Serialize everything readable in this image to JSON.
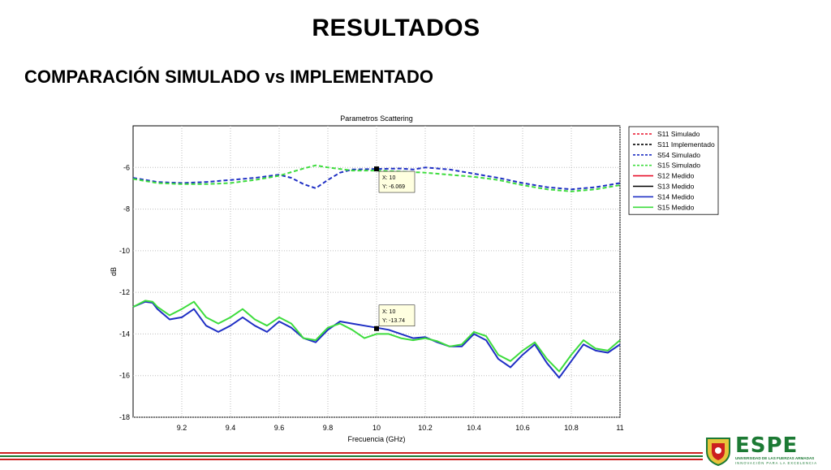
{
  "slide": {
    "title": "RESULTADOS",
    "subtitle": "COMPARACIÓN SIMULADO vs IMPLEMENTADO"
  },
  "logo": {
    "name": "ESPE",
    "line1": "UNIVERSIDAD DE LAS FUERZAS ARMADAS",
    "line2": "INNOVACIÓN PARA LA EXCELENCIA",
    "color": "#1c7a34",
    "accent": "#cc1f1f"
  },
  "chart_data": {
    "type": "line",
    "title": "Parametros Scattering",
    "xlabel": "Frecuencia (GHz)",
    "ylabel": "dB",
    "xlim": [
      9.0,
      11.0
    ],
    "ylim": [
      -18,
      -4
    ],
    "xticks": [
      9.2,
      9.4,
      9.6,
      9.8,
      10,
      10.2,
      10.4,
      10.6,
      10.8,
      11
    ],
    "yticks": [
      -6,
      -8,
      -10,
      -12,
      -14,
      -16,
      -18
    ],
    "grid": true,
    "legend": "top-right",
    "series": [
      {
        "name": "S11 Simulado",
        "color": "#e8102a",
        "dash": true,
        "x": [],
        "y": []
      },
      {
        "name": "S11 Implementado",
        "color": "#000000",
        "dash": true,
        "x": [],
        "y": []
      },
      {
        "name": "S54 Simulado",
        "color": "#1f2fc4",
        "dash": true,
        "x": [
          9.0,
          9.1,
          9.2,
          9.3,
          9.4,
          9.5,
          9.6,
          9.65,
          9.7,
          9.75,
          9.8,
          9.85,
          9.9,
          10.0,
          10.1,
          10.15,
          10.2,
          10.3,
          10.4,
          10.5,
          10.6,
          10.7,
          10.8,
          10.9,
          11.0
        ],
        "y": [
          -6.5,
          -6.7,
          -6.75,
          -6.7,
          -6.6,
          -6.5,
          -6.35,
          -6.5,
          -6.8,
          -7.0,
          -6.6,
          -6.25,
          -6.1,
          -6.069,
          -6.05,
          -6.1,
          -6.0,
          -6.1,
          -6.3,
          -6.5,
          -6.75,
          -6.95,
          -7.05,
          -6.95,
          -6.75
        ]
      },
      {
        "name": "S15 Simulado",
        "color": "#3ddc3d",
        "dash": true,
        "x": [
          9.0,
          9.1,
          9.2,
          9.3,
          9.4,
          9.5,
          9.6,
          9.7,
          9.75,
          9.8,
          9.9,
          10.0,
          10.1,
          10.2,
          10.3,
          10.4,
          10.5,
          10.6,
          10.7,
          10.8,
          10.9,
          11.0
        ],
        "y": [
          -6.55,
          -6.75,
          -6.8,
          -6.8,
          -6.75,
          -6.6,
          -6.4,
          -6.05,
          -5.9,
          -6.0,
          -6.15,
          -6.15,
          -6.2,
          -6.25,
          -6.35,
          -6.45,
          -6.6,
          -6.85,
          -7.05,
          -7.15,
          -7.05,
          -6.85
        ]
      },
      {
        "name": "S12 Medido",
        "color": "#e8102a",
        "dash": false,
        "x": [],
        "y": []
      },
      {
        "name": "S13 Medido",
        "color": "#000000",
        "dash": false,
        "x": [],
        "y": []
      },
      {
        "name": "S14 Medido",
        "color": "#1f2fc4",
        "dash": false,
        "x": [
          9.0,
          9.05,
          9.08,
          9.1,
          9.15,
          9.2,
          9.25,
          9.3,
          9.35,
          9.4,
          9.45,
          9.5,
          9.55,
          9.6,
          9.65,
          9.7,
          9.75,
          9.8,
          9.85,
          9.9,
          9.95,
          10.0,
          10.05,
          10.1,
          10.15,
          10.2,
          10.25,
          10.3,
          10.35,
          10.4,
          10.45,
          10.5,
          10.55,
          10.6,
          10.65,
          10.7,
          10.75,
          10.8,
          10.85,
          10.9,
          10.95,
          11.0
        ],
        "y": [
          -12.7,
          -12.45,
          -12.5,
          -12.8,
          -13.3,
          -13.2,
          -12.8,
          -13.6,
          -13.9,
          -13.6,
          -13.2,
          -13.6,
          -13.9,
          -13.4,
          -13.7,
          -14.2,
          -14.4,
          -13.8,
          -13.4,
          -13.5,
          -13.6,
          -13.7,
          -13.8,
          -14.0,
          -14.2,
          -14.15,
          -14.4,
          -14.6,
          -14.6,
          -14.0,
          -14.3,
          -15.2,
          -15.6,
          -15.0,
          -14.5,
          -15.4,
          -16.1,
          -15.3,
          -14.5,
          -14.8,
          -14.9,
          -14.5
        ]
      },
      {
        "name": "S15 Medido",
        "color": "#3ddc3d",
        "dash": false,
        "x": [
          9.0,
          9.05,
          9.08,
          9.1,
          9.15,
          9.2,
          9.25,
          9.3,
          9.35,
          9.4,
          9.45,
          9.5,
          9.55,
          9.6,
          9.65,
          9.7,
          9.75,
          9.8,
          9.85,
          9.9,
          9.95,
          10.0,
          10.05,
          10.1,
          10.15,
          10.2,
          10.25,
          10.3,
          10.35,
          10.4,
          10.45,
          10.5,
          10.55,
          10.6,
          10.65,
          10.7,
          10.75,
          10.8,
          10.85,
          10.9,
          10.95,
          11.0
        ],
        "y": [
          -12.7,
          -12.4,
          -12.45,
          -12.7,
          -13.1,
          -12.8,
          -12.45,
          -13.2,
          -13.5,
          -13.2,
          -12.8,
          -13.3,
          -13.6,
          -13.2,
          -13.5,
          -14.2,
          -14.3,
          -13.7,
          -13.5,
          -13.8,
          -14.2,
          -14.0,
          -14.0,
          -14.2,
          -14.3,
          -14.2,
          -14.35,
          -14.6,
          -14.5,
          -13.9,
          -14.1,
          -15.0,
          -15.3,
          -14.8,
          -14.4,
          -15.2,
          -15.8,
          -15.0,
          -14.3,
          -14.7,
          -14.8,
          -14.3
        ]
      }
    ],
    "annotations": [
      {
        "x": 10,
        "y": -6.069,
        "line1": "X: 10",
        "line2": "Y: -6.069"
      },
      {
        "x": 10,
        "y": -13.74,
        "line1": "X: 10",
        "line2": "Y: -13.74"
      }
    ]
  }
}
